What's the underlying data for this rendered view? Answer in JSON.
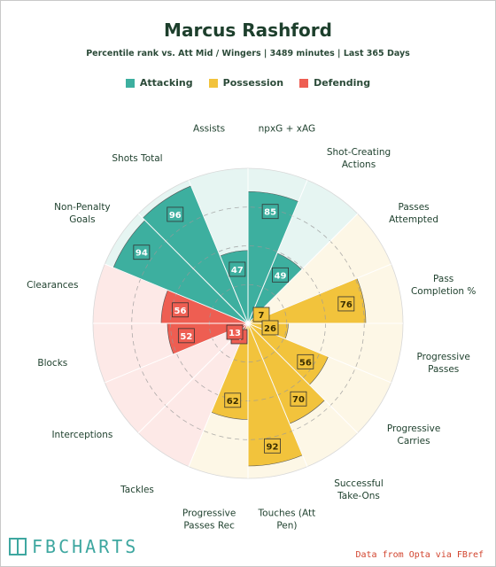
{
  "header": {
    "title": "Marcus Rashford",
    "subtitle": "Percentile rank vs. Att Mid / Wingers | 3489 minutes | Last 365 Days"
  },
  "legend": [
    {
      "label": "Attacking",
      "color": "#3daf9f"
    },
    {
      "label": "Possession",
      "color": "#f2c33c"
    },
    {
      "label": "Defending",
      "color": "#ee5e52"
    }
  ],
  "footer": {
    "logo_text": "FBCHARTS",
    "source": "Data from Opta via FBref"
  },
  "chart_data": {
    "type": "radar",
    "title": "Marcus Rashford",
    "subtitle": "Percentile rank vs. Att Mid / Wingers | 3489 minutes | Last 365 Days",
    "range": [
      0,
      100
    ],
    "categories": [
      {
        "label": "npxG + xAG",
        "lines": [
          "npxG + xAG"
        ],
        "group": "Attacking",
        "value": 85
      },
      {
        "label": "Shot-Creating Actions",
        "lines": [
          "Shot-Creating",
          "Actions"
        ],
        "group": "Attacking",
        "value": 49
      },
      {
        "label": "Passes Attempted",
        "lines": [
          "Passes",
          "Attempted"
        ],
        "group": "Possession",
        "value": 7
      },
      {
        "label": "Pass Completion %",
        "lines": [
          "Pass",
          "Completion %"
        ],
        "group": "Possession",
        "value": 76
      },
      {
        "label": "Progressive Passes",
        "lines": [
          "Progressive",
          "Passes"
        ],
        "group": "Possession",
        "value": 26
      },
      {
        "label": "Progressive Carries",
        "lines": [
          "Progressive",
          "Carries"
        ],
        "group": "Possession",
        "value": 56
      },
      {
        "label": "Successful Take-Ons",
        "lines": [
          "Successful",
          "Take-Ons"
        ],
        "group": "Possession",
        "value": 70
      },
      {
        "label": "Touches (Att Pen)",
        "lines": [
          "Touches (Att",
          "Pen)"
        ],
        "group": "Possession",
        "value": 92
      },
      {
        "label": "Progressive Passes Rec",
        "lines": [
          "Progressive",
          "Passes Rec"
        ],
        "group": "Possession",
        "value": 62
      },
      {
        "label": "Tackles",
        "lines": [
          "Tackles"
        ],
        "group": "Defending",
        "value": 4
      },
      {
        "label": "Interceptions",
        "lines": [
          "Interceptions"
        ],
        "group": "Defending",
        "value": 13
      },
      {
        "label": "Blocks",
        "lines": [
          "Blocks"
        ],
        "group": "Defending",
        "value": 52
      },
      {
        "label": "Clearances",
        "lines": [
          "Clearances"
        ],
        "group": "Defending",
        "value": 56
      },
      {
        "label": "Non-Penalty Goals",
        "lines": [
          "Non-Penalty",
          "Goals"
        ],
        "group": "Attacking",
        "value": 94
      },
      {
        "label": "Shots Total",
        "lines": [
          "Shots Total"
        ],
        "group": "Attacking",
        "value": 96
      },
      {
        "label": "Assists",
        "lines": [
          "Assists"
        ],
        "group": "Attacking",
        "value": 47
      }
    ],
    "group_colors": {
      "Attacking": "#3daf9f",
      "Possession": "#f2c33c",
      "Defending": "#ee5e52"
    },
    "background_colors": {
      "Attacking": "#e6f5f2",
      "Possession": "#fdf7e6",
      "Defending": "#fde9e7"
    },
    "grid": true
  }
}
